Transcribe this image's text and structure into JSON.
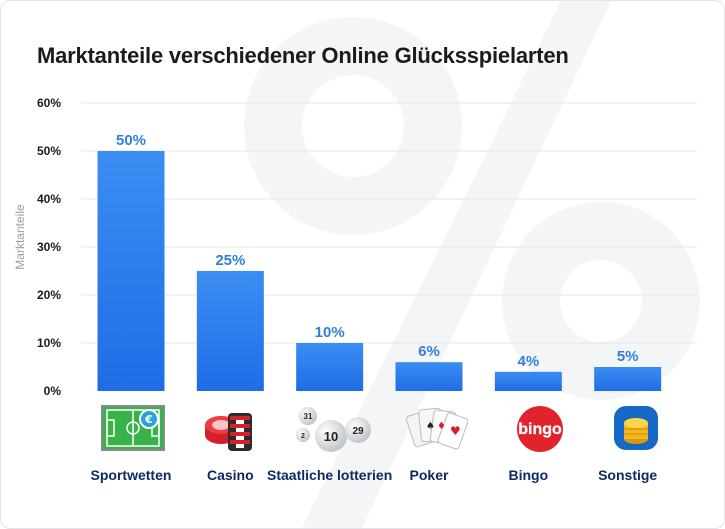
{
  "title": "Marktanteile verschiedener Online Glücksspielarten",
  "colors": {
    "bar_top": "#3b8df2",
    "bar_bottom": "#1f6de6",
    "label": "#2e7fe0",
    "axis_text": "#1b1b1b",
    "category_text": "#0f2a60",
    "grid": "#e3e5e8",
    "watermark": "#f4f5f7"
  },
  "chart_data": {
    "type": "bar",
    "categories": [
      "Sportwetten",
      "Casino",
      "Staatliche lotterien",
      "Poker",
      "Bingo",
      "Sonstige"
    ],
    "values": [
      50,
      25,
      10,
      6,
      4,
      5
    ],
    "value_labels": [
      "50%",
      "25%",
      "10%",
      "6%",
      "4%",
      "5%"
    ],
    "ylabel": "Marktanteile",
    "ylim": [
      0,
      60
    ],
    "yticks": [
      0,
      10,
      20,
      30,
      40,
      50,
      60
    ],
    "ytick_labels": [
      "0%",
      "10%",
      "20%",
      "30%",
      "40%",
      "50%",
      "60%"
    ],
    "grid": true,
    "category_icons": [
      "soccer-field-euro-icon",
      "casino-chips-icon",
      "lottery-balls-icon",
      "playing-cards-icon",
      "bingo-icon",
      "coin-stack-icon"
    ],
    "lottery_ball_numbers": [
      "31",
      "10",
      "29",
      "2"
    ],
    "bingo_logo_text": "bingo",
    "watermark": "%"
  }
}
